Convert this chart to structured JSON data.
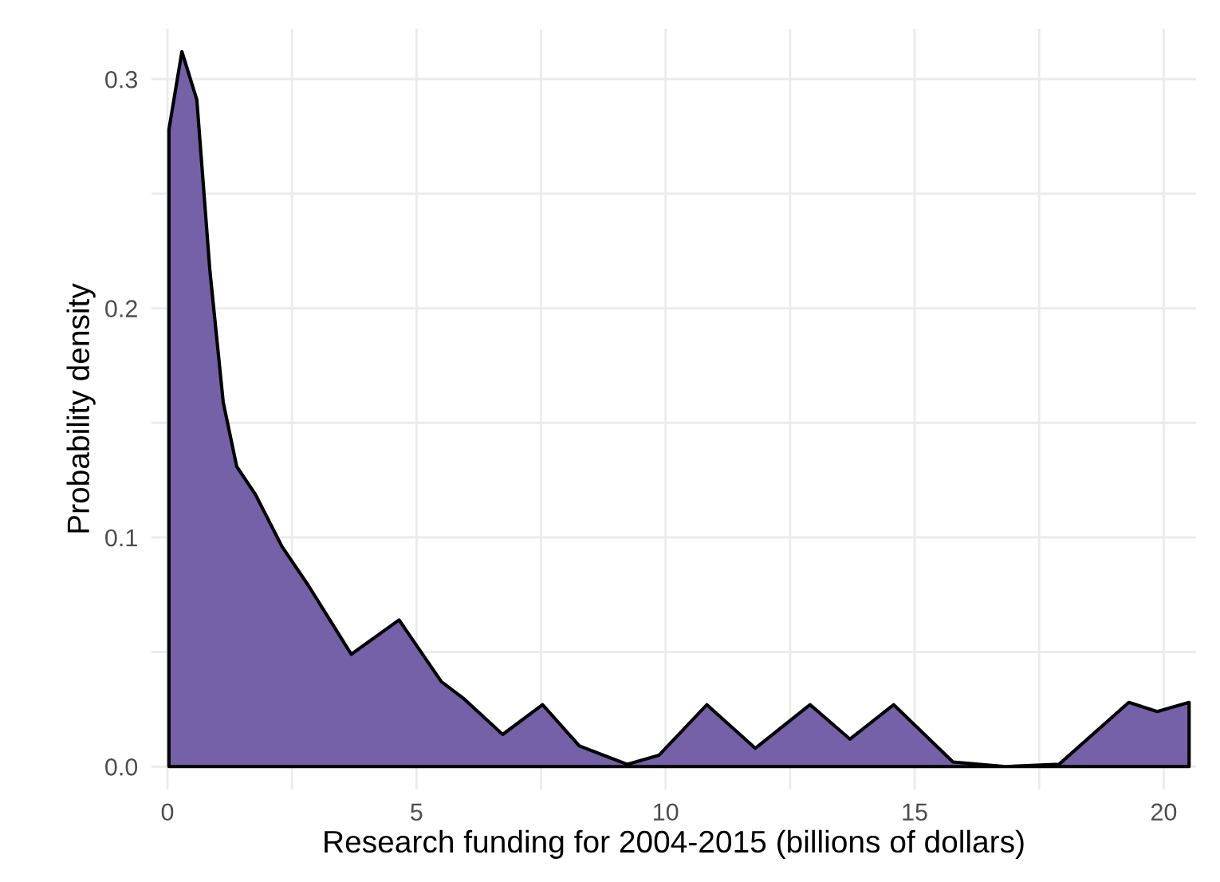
{
  "chart_data": {
    "type": "area",
    "xlabel": "Research funding for 2004-2015 (billions of dollars)",
    "ylabel": "Probability density",
    "series": [
      {
        "color": "#7461a8",
        "x": [
          0.03,
          0.29,
          0.59,
          0.85,
          1.12,
          1.39,
          1.76,
          2.3,
          2.83,
          3.69,
          4.65,
          5.5,
          5.93,
          6.73,
          7.53,
          8.27,
          9.23,
          9.87,
          10.83,
          11.8,
          12.9,
          13.7,
          14.58,
          15.77,
          16.83,
          17.9,
          19.3,
          19.87,
          20.51
        ],
        "values": [
          0.278,
          0.312,
          0.291,
          0.217,
          0.159,
          0.131,
          0.119,
          0.096,
          0.079,
          0.049,
          0.064,
          0.037,
          0.03,
          0.014,
          0.027,
          0.009,
          0.001,
          0.005,
          0.027,
          0.008,
          0.027,
          0.012,
          0.027,
          0.002,
          0.0,
          0.001,
          0.028,
          0.024,
          0.028
        ]
      }
    ],
    "xlim": [
      -0.32,
      20.65
    ],
    "ylim": [
      -0.01,
      0.322
    ],
    "xticks": [
      0,
      {
        "value": 2.5,
        "label": null
      },
      5,
      {
        "value": 7.5,
        "label": null
      },
      10,
      {
        "value": 12.5,
        "label": null
      },
      15,
      {
        "value": 17.5,
        "label": null
      },
      20
    ],
    "yticks": [
      {
        "value": 0,
        "label": "0.0"
      },
      {
        "value": 0.05,
        "label": null
      },
      0.1,
      {
        "value": 0.15,
        "label": null
      },
      0.2,
      {
        "value": 0.25,
        "label": null
      },
      0.3
    ],
    "grid": true,
    "legend": false
  }
}
